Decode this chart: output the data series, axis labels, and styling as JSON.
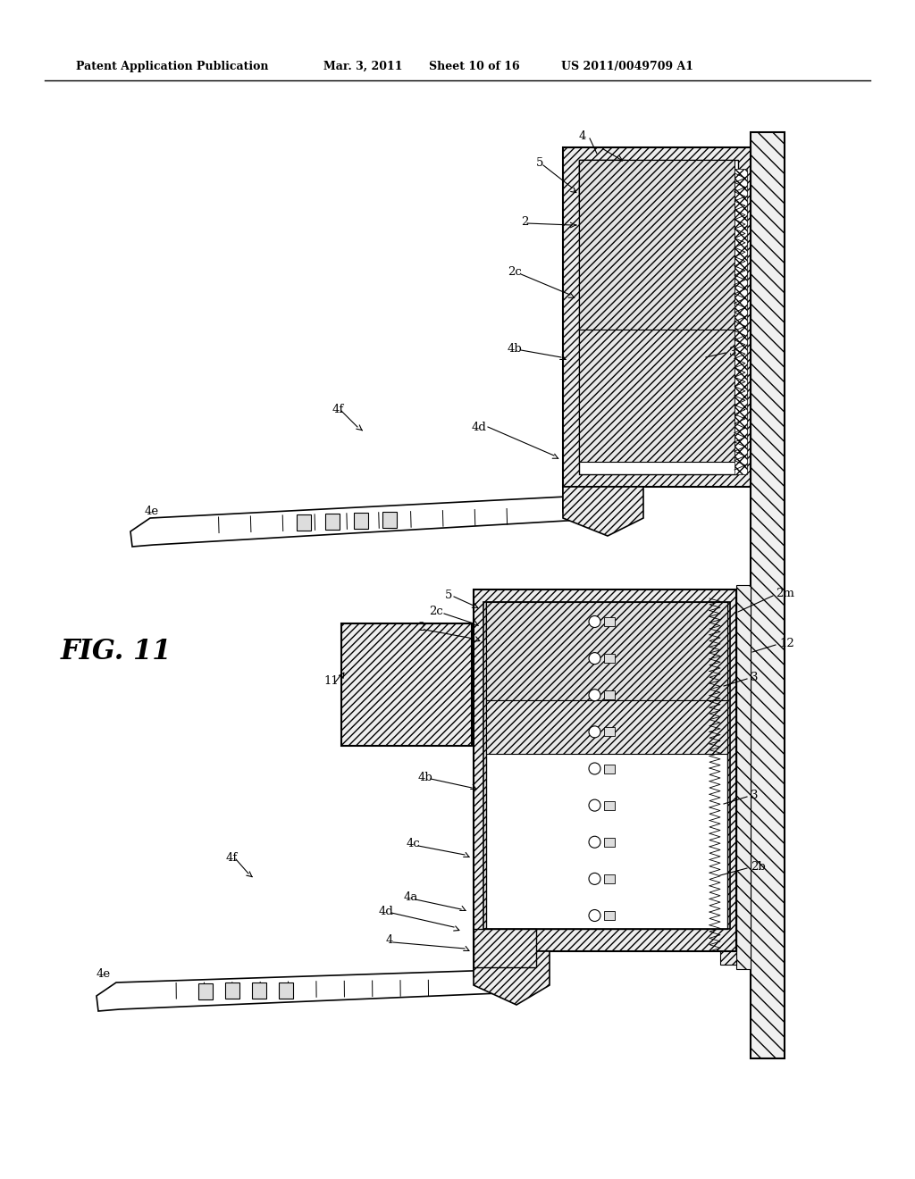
{
  "bg_color": "#ffffff",
  "line_color": "#000000",
  "title_line1": "Patent Application Publication",
  "title_date": "Mar. 3, 2011",
  "title_sheet": "Sheet 10 of 16",
  "title_patent": "US 2011/0049709 A1",
  "fig_label": "FIG. 11"
}
